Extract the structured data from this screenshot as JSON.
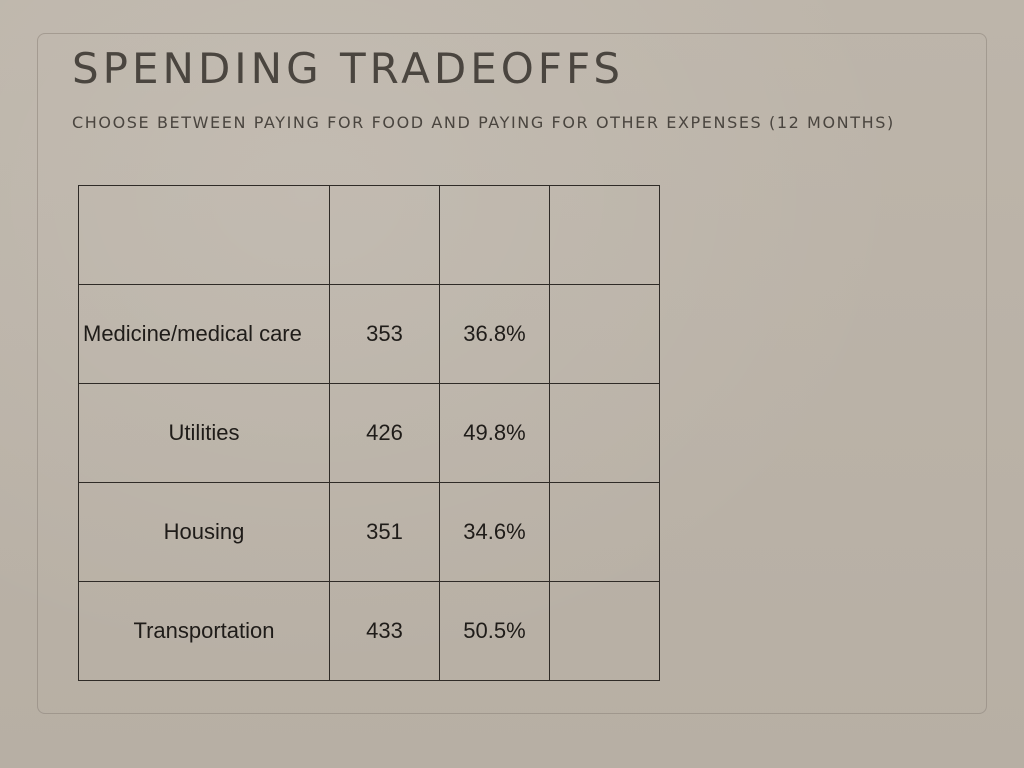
{
  "slide": {
    "title": "SPENDING TRADEOFFS",
    "subtitle": "CHOOSE BETWEEN PAYING FOR FOOD AND PAYING FOR OTHER EXPENSES (12 MONTHS)"
  },
  "table": {
    "header": [
      "",
      "",
      "",
      ""
    ],
    "rows": [
      {
        "label": "Medicine/medical care",
        "count": "353",
        "percent": "36.8%",
        "extra": ""
      },
      {
        "label": "Utilities",
        "count": "426",
        "percent": "49.8%",
        "extra": ""
      },
      {
        "label": "Housing",
        "count": "351",
        "percent": "34.6%",
        "extra": ""
      },
      {
        "label": "Transportation",
        "count": "433",
        "percent": "50.5%",
        "extra": ""
      }
    ]
  }
}
